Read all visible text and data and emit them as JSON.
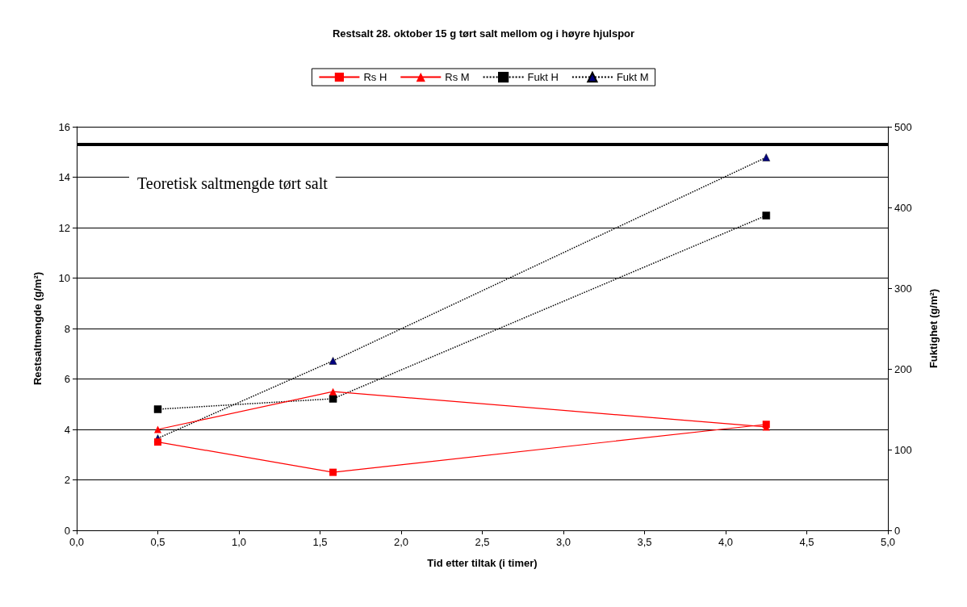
{
  "chart_data": {
    "type": "line",
    "title": "Restsalt 28. oktober 15 g tørt salt mellom og i høyre hjulspor",
    "xlabel": "Tid etter tiltak (i timer)",
    "ylabel": "Restsaltmengde (g/m²)",
    "y2label": "Fuktighet (g/m²)",
    "x": [
      0.5,
      1.58,
      4.25
    ],
    "series": [
      {
        "name": "Rs H",
        "color": "#ff0000",
        "values": [
          3.5,
          2.3,
          4.2
        ],
        "marker": "square",
        "line_style": "solid"
      },
      {
        "name": "Rs M",
        "color": "#ff0000",
        "values": [
          4.0,
          5.5,
          4.1
        ],
        "marker": "triangle",
        "line_style": "solid"
      },
      {
        "name": "Fukt H",
        "color": "#000000",
        "values": [
          150,
          163,
          390
        ],
        "marker": "square",
        "line_style": "dotted",
        "axis": "y2"
      },
      {
        "name": "Fukt M",
        "color": "#000080",
        "values": [
          114,
          210,
          462
        ],
        "marker": "triangle",
        "line_style": "dotted",
        "axis": "y2"
      }
    ],
    "xlim": [
      0,
      5
    ],
    "xticks": [
      {
        "value": 0,
        "label": "0,0"
      },
      {
        "value": 0.5,
        "label": "0,5"
      },
      {
        "value": 1,
        "label": "1,0"
      },
      {
        "value": 1.5,
        "label": "1,5"
      },
      {
        "value": 2,
        "label": "2,0"
      },
      {
        "value": 2.5,
        "label": "2,5"
      },
      {
        "value": 3,
        "label": "3,0"
      },
      {
        "value": 3.5,
        "label": "3,5"
      },
      {
        "value": 4,
        "label": "4,0"
      },
      {
        "value": 4.5,
        "label": "4,5"
      },
      {
        "value": 5,
        "label": "5,0"
      }
    ],
    "ylim": [
      0,
      16
    ],
    "yticks": [
      0,
      2,
      4,
      6,
      8,
      10,
      12,
      14,
      16
    ],
    "y2lim": [
      0,
      500
    ],
    "y2ticks": [
      0,
      100,
      200,
      300,
      400,
      500
    ],
    "ref_lines": [
      {
        "axis": "y",
        "value": 15.3,
        "label": "Teoretisk saltmengde tørt salt",
        "color": "#000000"
      }
    ],
    "grid": "y",
    "legend": "top"
  }
}
